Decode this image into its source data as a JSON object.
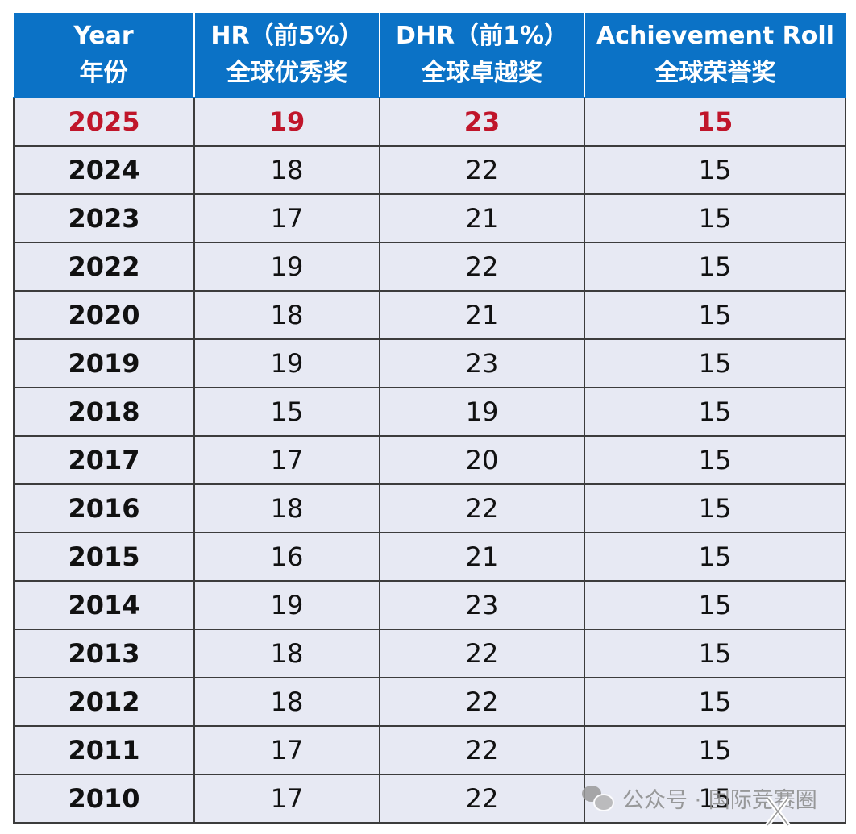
{
  "table": {
    "headers": [
      {
        "line1": "Year",
        "line2": "年份"
      },
      {
        "line1": "HR（前5%）",
        "line2": "全球优秀奖"
      },
      {
        "line1": "DHR（前1%）",
        "line2": "全球卓越奖"
      },
      {
        "line1": "Achievement Roll",
        "line2": "全球荣誉奖"
      }
    ],
    "rows": [
      {
        "year": "2025",
        "hr": "19",
        "dhr": "23",
        "ar": "15",
        "highlight": true
      },
      {
        "year": "2024",
        "hr": "18",
        "dhr": "22",
        "ar": "15"
      },
      {
        "year": "2023",
        "hr": "17",
        "dhr": "21",
        "ar": "15"
      },
      {
        "year": "2022",
        "hr": "19",
        "dhr": "22",
        "ar": "15"
      },
      {
        "year": "2020",
        "hr": "18",
        "dhr": "21",
        "ar": "15"
      },
      {
        "year": "2019",
        "hr": "19",
        "dhr": "23",
        "ar": "15"
      },
      {
        "year": "2018",
        "hr": "15",
        "dhr": "19",
        "ar": "15"
      },
      {
        "year": "2017",
        "hr": "17",
        "dhr": "20",
        "ar": "15"
      },
      {
        "year": "2016",
        "hr": "18",
        "dhr": "22",
        "ar": "15"
      },
      {
        "year": "2015",
        "hr": "16",
        "dhr": "21",
        "ar": "15"
      },
      {
        "year": "2014",
        "hr": "19",
        "dhr": "23",
        "ar": "15"
      },
      {
        "year": "2013",
        "hr": "18",
        "dhr": "22",
        "ar": "15"
      },
      {
        "year": "2012",
        "hr": "18",
        "dhr": "22",
        "ar": "15"
      },
      {
        "year": "2011",
        "hr": "17",
        "dhr": "22",
        "ar": "15"
      },
      {
        "year": "2010",
        "hr": "17",
        "dhr": "22",
        "ar": "15"
      }
    ]
  },
  "watermark": {
    "text": "公众号 · 国际竞赛圈",
    "icon": "wechat-icon"
  },
  "colors": {
    "header_bg": "#0b72c6",
    "row_bg": "#e7e9f3",
    "highlight_text": "#c0152a"
  }
}
